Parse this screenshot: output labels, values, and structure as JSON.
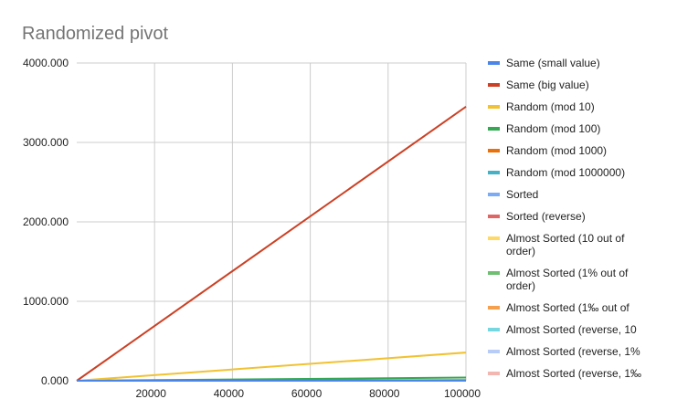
{
  "chart_data": {
    "type": "line",
    "title": "Randomized pivot",
    "xlabel": "",
    "ylabel": "",
    "xlim": [
      0,
      100000
    ],
    "ylim": [
      0,
      4000
    ],
    "grid": true,
    "legend_position": "right",
    "x_ticks": [
      "20000",
      "40000",
      "60000",
      "80000",
      "100000"
    ],
    "x_tick_values": [
      20000,
      40000,
      60000,
      80000,
      100000
    ],
    "y_ticks": [
      "0.000",
      "1000.000",
      "2000.000",
      "3000.000",
      "4000.000"
    ],
    "y_tick_values": [
      0,
      1000,
      2000,
      3000,
      4000
    ],
    "x": [
      0,
      100000
    ],
    "series": [
      {
        "name": "Same (small value)",
        "color": "#4a86e8",
        "values": [
          0,
          2
        ],
        "label_lines": [
          "Same (small value)"
        ]
      },
      {
        "name": "Same (big value)",
        "color": "#cc4125",
        "values": [
          0,
          3450
        ],
        "label_lines": [
          "Same (big value)"
        ]
      },
      {
        "name": "Random (mod 10)",
        "color": "#f1c232",
        "values": [
          0,
          355
        ],
        "label_lines": [
          "Random (mod 10)"
        ]
      },
      {
        "name": "Random (mod 100)",
        "color": "#34a853",
        "values": [
          0,
          40
        ],
        "label_lines": [
          "Random (mod 100)"
        ]
      },
      {
        "name": "Random (mod 1000)",
        "color": "#e8710a",
        "values": [
          0,
          8
        ],
        "label_lines": [
          "Random (mod 1000)"
        ]
      },
      {
        "name": "Random (mod 1000000)",
        "color": "#45b1c4",
        "values": [
          0,
          6
        ],
        "label_lines": [
          "Random (mod 1000000)"
        ]
      },
      {
        "name": "Sorted",
        "color": "#7baaf7",
        "values": [
          0,
          5
        ],
        "label_lines": [
          "Sorted"
        ]
      },
      {
        "name": "Sorted (reverse)",
        "color": "#e06666",
        "values": [
          0,
          5
        ],
        "label_lines": [
          "Sorted (reverse)"
        ]
      },
      {
        "name": "Almost Sorted (10 out of order)",
        "color": "#ffd966",
        "values": [
          0,
          5
        ],
        "label_lines": [
          "Almost Sorted (10 out of",
          "order)"
        ]
      },
      {
        "name": "Almost Sorted (1% out of order)",
        "color": "#6fbf73",
        "values": [
          0,
          5
        ],
        "label_lines": [
          "Almost Sorted (1% out of",
          "order)"
        ]
      },
      {
        "name": "Almost Sorted (1‰ out of",
        "color": "#f6a04d",
        "values": [
          0,
          5
        ],
        "label_lines": [
          "Almost Sorted (1‰ out of"
        ]
      },
      {
        "name": "Almost Sorted (reverse, 10",
        "color": "#76d7e0",
        "values": [
          0,
          5
        ],
        "label_lines": [
          "Almost Sorted (reverse, 10"
        ]
      },
      {
        "name": "Almost Sorted (reverse, 1%",
        "color": "#b7cdf7",
        "values": [
          0,
          5
        ],
        "label_lines": [
          "Almost Sorted (reverse, 1%"
        ]
      },
      {
        "name": "Almost Sorted (reverse, 1‰",
        "color": "#f4b6b0",
        "values": [
          0,
          5
        ],
        "label_lines": [
          "Almost Sorted (reverse, 1‰"
        ]
      }
    ]
  }
}
